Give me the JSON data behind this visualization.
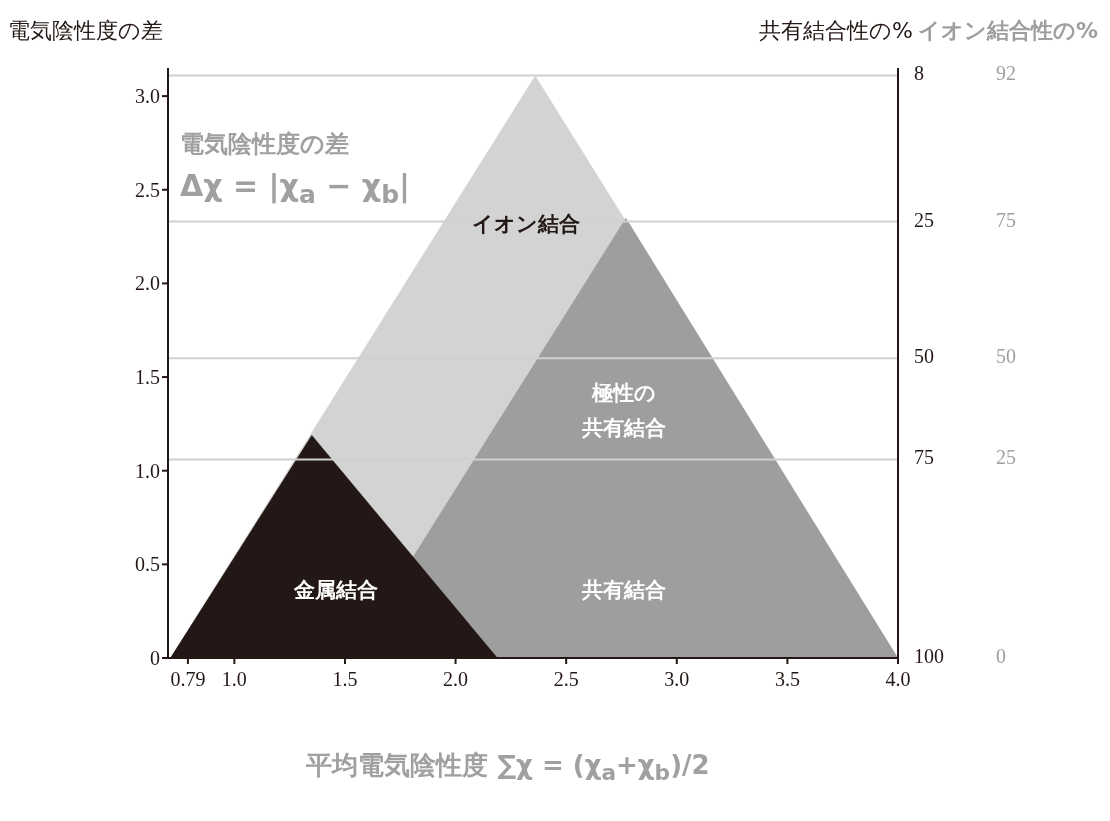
{
  "chart_data": {
    "type": "area",
    "xlabel": "平均電気陰性度 ∑χ = (χ$_{a}$+χ$_{b}$)/2",
    "ylabel": "電気陰性度の差",
    "y2label": "共有結合性の%",
    "y3label": "イオン結合性の%",
    "xlim": [
      0.7,
      4.0
    ],
    "xticks": [
      0.79,
      {
        "value": 1,
        "label": "1.0"
      },
      1.5,
      {
        "value": 2,
        "label": "2.0"
      },
      2.5,
      {
        "value": 3,
        "label": "3.0"
      },
      3.5,
      {
        "value": 4,
        "label": "4.0"
      }
    ],
    "ylim": [
      0,
      3.15
    ],
    "yticks": [
      0,
      0.5,
      {
        "value": 1,
        "label": "1.0"
      },
      1.5,
      {
        "value": 2,
        "label": "2.0"
      },
      2.5,
      {
        "value": 3,
        "label": "3.0"
      }
    ],
    "ref_lines": [
      {
        "axis": "y",
        "value": 3.11,
        "color": "#d0d0d0"
      },
      {
        "axis": "y",
        "value": 2.33,
        "color": "#d0d0d0"
      },
      {
        "axis": "y",
        "value": 1.6,
        "color": "#d0d0d0"
      },
      {
        "axis": "y",
        "value": 1.06,
        "color": "#d0d0d0"
      }
    ],
    "series": [
      {
        "color": "#d3d3d3",
        "x": [
          0.71,
          2.36,
          4.0
        ],
        "values": [
          0,
          3.11,
          0
        ]
      },
      {
        "color": "#9d9e9d",
        "x": [
          1.52,
          2.77,
          4.0
        ],
        "values": [
          0,
          2.35,
          0
        ]
      },
      {
        "color": "#231815",
        "x": [
          0.71,
          1.35,
          2.19
        ],
        "values": [
          0,
          1.19,
          0
        ]
      }
    ],
    "annotations": [
      "電気陰性度の差",
      "Δχ = |χ$_{a}$ − χ$_{b}$|",
      "イオン結合",
      "極性の",
      "共有結合",
      "共有結合",
      "金属結合",
      "8",
      "92",
      "25",
      "75",
      "50",
      "50",
      "75",
      "25",
      "100",
      "0"
    ]
  }
}
